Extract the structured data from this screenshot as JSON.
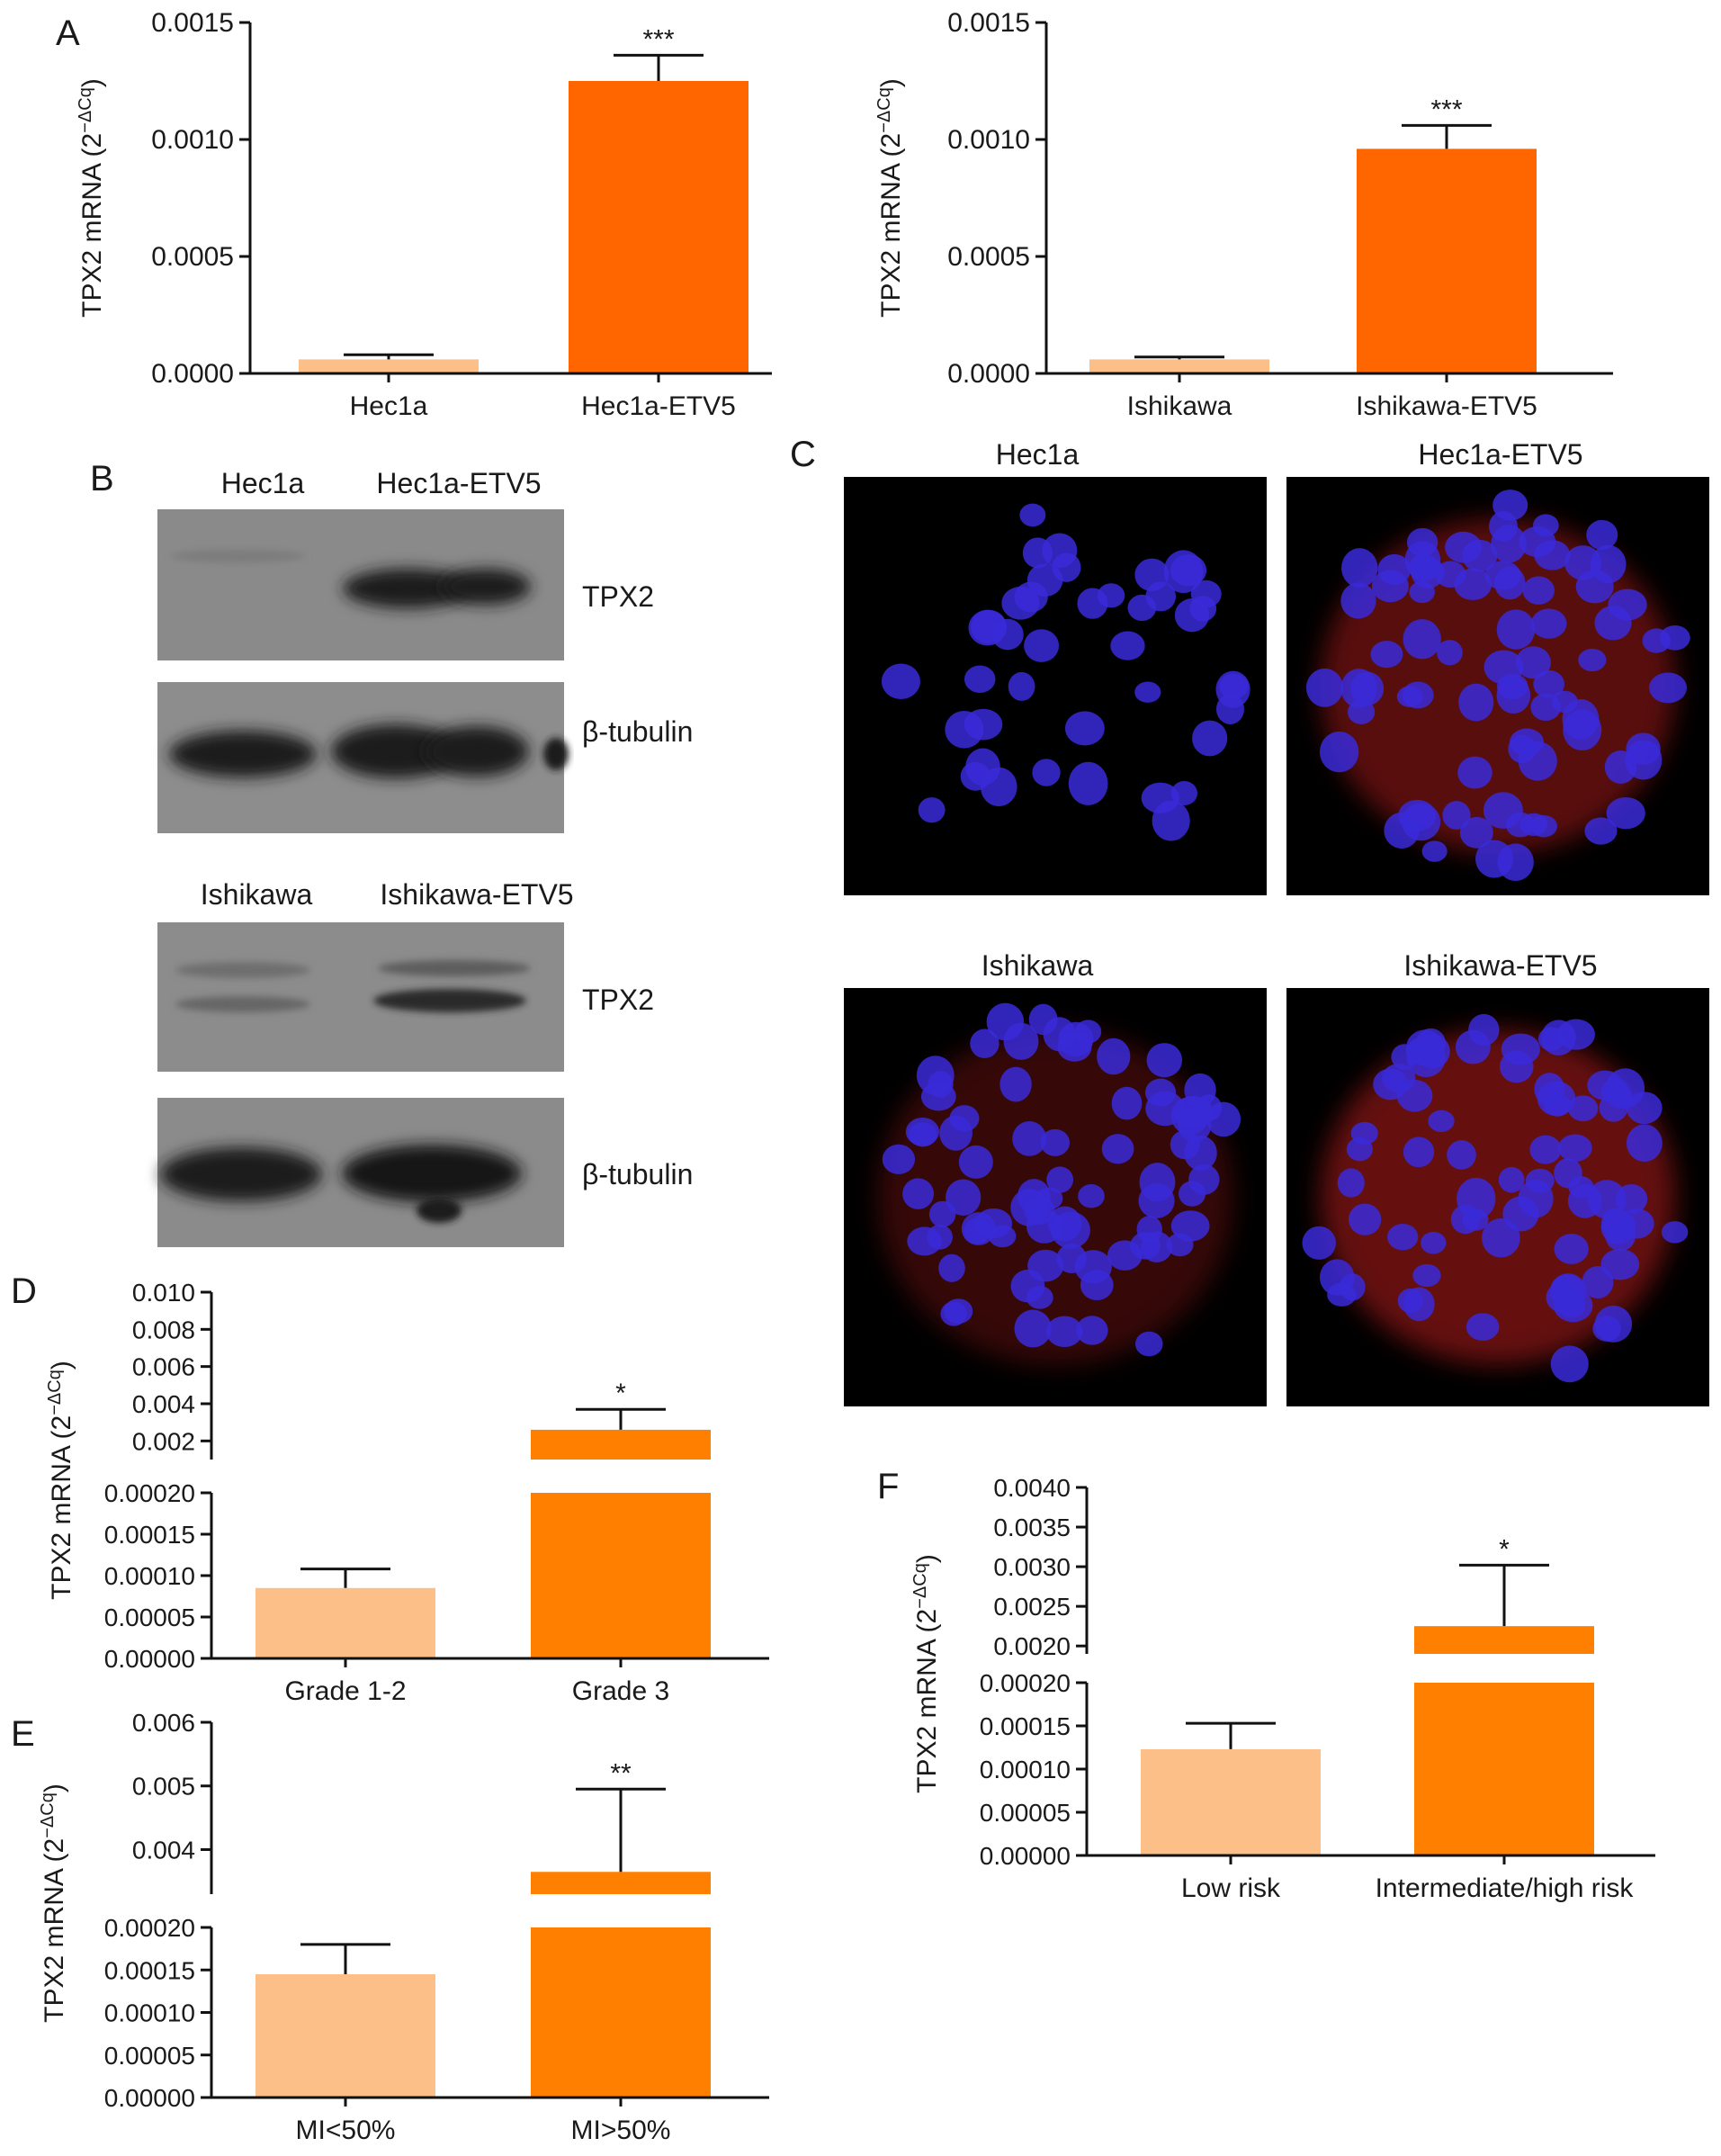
{
  "panel_labels": {
    "a": "A",
    "b": "B",
    "c": "C",
    "d": "D",
    "e": "E",
    "f": "F"
  },
  "ylabel_main": "TPX2 mRNA (2",
  "ylabel_exp": "−ΔCq",
  "ylabel_close": ")",
  "colors": {
    "light": "#fbbf87",
    "dark_a": "#ff6600",
    "dark_def": "#ff8000",
    "nucleus": "#3a2ad8",
    "stain": "#d82020"
  },
  "chart_data": [
    {
      "id": "A-left",
      "type": "bar",
      "categories": [
        "Hec1a",
        "Hec1a-ETV5"
      ],
      "values": [
        6e-05,
        0.00125
      ],
      "errors": [
        2e-05,
        0.00011
      ],
      "significance": [
        "",
        "***"
      ],
      "ylim": [
        0,
        0.0015
      ],
      "yticks": [
        "0.0000",
        "0.0005",
        "0.0010",
        "0.0015"
      ],
      "ylabel": "TPX2 mRNA (2−ΔCq)"
    },
    {
      "id": "A-right",
      "type": "bar",
      "categories": [
        "Ishikawa",
        "Ishikawa-ETV5"
      ],
      "values": [
        6e-05,
        0.00096
      ],
      "errors": [
        1e-05,
        0.0001
      ],
      "significance": [
        "",
        "***"
      ],
      "ylim": [
        0,
        0.0015
      ],
      "yticks": [
        "0.0000",
        "0.0005",
        "0.0010",
        "0.0015"
      ],
      "ylabel": "TPX2 mRNA (2−ΔCq)"
    },
    {
      "id": "D",
      "type": "bar",
      "broken_axis": true,
      "categories": [
        "Grade 1-2",
        "Grade 3"
      ],
      "values": [
        8.5e-05,
        0.0026
      ],
      "errors": [
        2.3e-05,
        0.0011
      ],
      "significance": [
        "",
        "*"
      ],
      "ylim_lower": [
        0,
        0.0002
      ],
      "ylim_upper": [
        0.001,
        0.01
      ],
      "yticks_lower": [
        "0.00000",
        "0.00005",
        "0.00010",
        "0.00015",
        "0.00020"
      ],
      "yticks_upper": [
        "0.002",
        "0.004",
        "0.006",
        "0.008",
        "0.010"
      ],
      "ylabel": "TPX2 mRNA (2−ΔCq)"
    },
    {
      "id": "E",
      "type": "bar",
      "broken_axis": true,
      "categories": [
        "MI<50%",
        "MI>50%"
      ],
      "values": [
        0.000145,
        0.00365
      ],
      "errors": [
        3.5e-05,
        0.0013
      ],
      "significance": [
        "",
        "**"
      ],
      "ylim_lower": [
        0,
        0.0002
      ],
      "ylim_upper": [
        0.0033,
        0.006
      ],
      "yticks_lower": [
        "0.00000",
        "0.00005",
        "0.00010",
        "0.00015",
        "0.00020"
      ],
      "yticks_upper": [
        "0.004",
        "0.005",
        "0.006"
      ],
      "ylabel": "TPX2 mRNA (2−ΔCq)"
    },
    {
      "id": "F",
      "type": "bar",
      "broken_axis": true,
      "categories": [
        "Low risk",
        "Intermediate/high risk"
      ],
      "values": [
        0.000123,
        0.00225
      ],
      "errors": [
        3e-05,
        0.00077
      ],
      "significance": [
        "",
        "*"
      ],
      "ylim_lower": [
        0,
        0.0002
      ],
      "ylim_upper": [
        0.0019,
        0.004
      ],
      "yticks_lower": [
        "0.00000",
        "0.00005",
        "0.00010",
        "0.00015",
        "0.00020"
      ],
      "yticks_upper": [
        "0.0020",
        "0.0025",
        "0.0030",
        "0.0035",
        "0.0040"
      ],
      "ylabel": "TPX2 mRNA (2−ΔCq)"
    }
  ],
  "western_blots": [
    {
      "lanes": [
        "Hec1a",
        "Hec1a-ETV5"
      ],
      "bands": [
        "TPX2",
        "β-tubulin"
      ]
    },
    {
      "lanes": [
        "Ishikawa",
        "Ishikawa-ETV5"
      ],
      "bands": [
        "TPX2",
        "β-tubulin"
      ]
    }
  ],
  "microscopy": {
    "titles": [
      "Hec1a",
      "Hec1a-ETV5",
      "Ishikawa",
      "Ishikawa-ETV5"
    ]
  }
}
